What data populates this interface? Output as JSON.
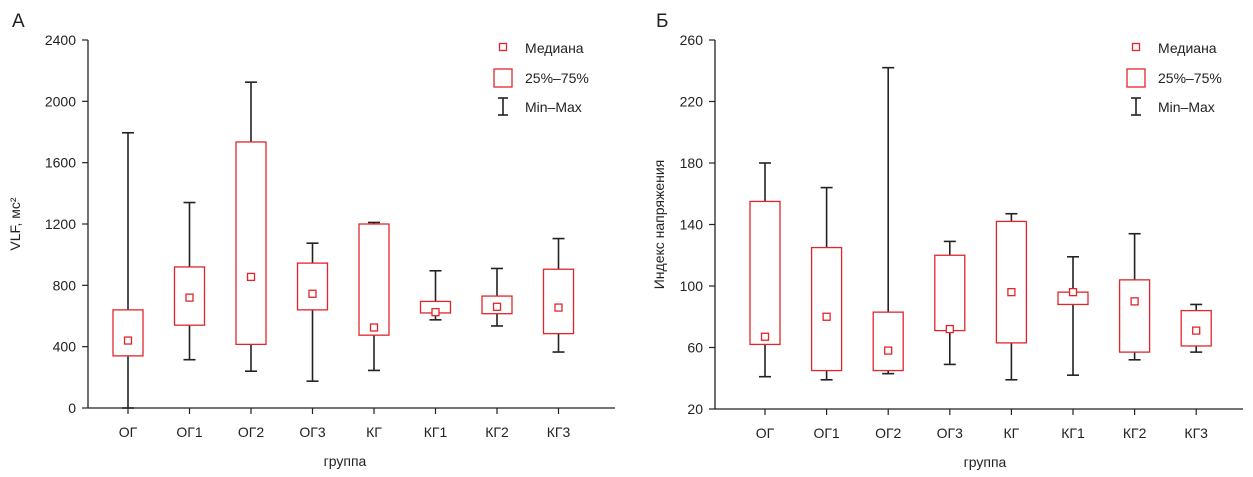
{
  "chart_data": [
    {
      "panel_label": "А",
      "type": "box",
      "categories": [
        "ОГ",
        "ОГ1",
        "ОГ2",
        "ОГ3",
        "КГ",
        "КГ1",
        "КГ2",
        "КГ3"
      ],
      "xlabel": "группа",
      "ylabel": "VLF, мс²",
      "ylim": [
        0,
        2400
      ],
      "yticks": [
        "0",
        "400",
        "800",
        "1200",
        "1600",
        "2000",
        "2400"
      ],
      "ytick_values": [
        0,
        400,
        800,
        1200,
        1600,
        2000,
        2400
      ],
      "min": [
        0,
        315,
        240,
        175,
        245,
        575,
        535,
        365
      ],
      "q1": [
        340,
        540,
        415,
        640,
        475,
        620,
        615,
        485
      ],
      "median": [
        440,
        720,
        855,
        745,
        525,
        625,
        660,
        655
      ],
      "q3": [
        640,
        920,
        1735,
        945,
        1200,
        695,
        730,
        905
      ],
      "max": [
        1795,
        1340,
        2125,
        1075,
        1210,
        895,
        910,
        1105
      ],
      "legend": {
        "median": "Медиана",
        "iqr": "25%–75%",
        "range": "Min–Max"
      }
    },
    {
      "panel_label": "Б",
      "type": "box",
      "categories": [
        "ОГ",
        "ОГ1",
        "ОГ2",
        "ОГ3",
        "КГ",
        "КГ1",
        "КГ2",
        "КГ3"
      ],
      "xlabel": "группа",
      "ylabel": "Индекс напряжения",
      "ylim": [
        20,
        260
      ],
      "yticks": [
        "20",
        "60",
        "100",
        "140",
        "180",
        "220",
        "260"
      ],
      "ytick_values": [
        20,
        60,
        100,
        140,
        180,
        220,
        260
      ],
      "min": [
        41,
        39,
        43,
        49,
        39,
        42,
        52,
        57
      ],
      "q1": [
        62,
        45,
        45,
        71,
        63,
        88,
        57,
        61
      ],
      "median": [
        67,
        80,
        58,
        72,
        96,
        96,
        90,
        71
      ],
      "q3": [
        155,
        125,
        83,
        120,
        142,
        96,
        104,
        84
      ],
      "max": [
        180,
        164,
        242,
        129,
        147,
        119,
        134,
        88
      ],
      "legend": {
        "median": "Медиана",
        "iqr": "25%–75%",
        "range": "Min–Max"
      }
    }
  ],
  "colors": {
    "box": "#e0262b",
    "whisker": "#222222",
    "axis": "#222222"
  }
}
